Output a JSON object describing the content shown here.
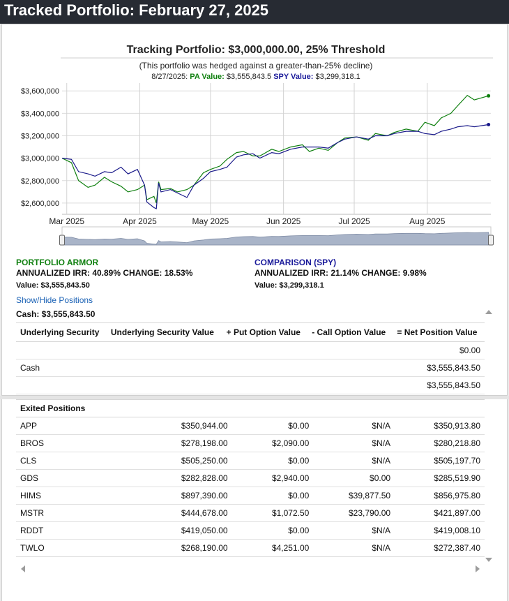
{
  "page_title": "Tracked Portfolio: February 27, 2025",
  "chart": {
    "title": "Tracking Portfolio: $3,000,000.00, 25% Threshold",
    "subtitle": "(This portfolio was hedged against a greater-than-25% decline)",
    "hover_date": "8/27/2025:",
    "hover_pa_label": "PA Value:",
    "hover_pa_value": "$3,555,843.5",
    "hover_spy_label": "SPY Value:",
    "hover_spy_value": "$3,299,318.1",
    "pa_color": "#108010",
    "spy_color": "#1a1a8a"
  },
  "chart_data": {
    "type": "line",
    "title": "Tracking Portfolio: $3,000,000.00, 25% Threshold",
    "xlabel": "",
    "ylabel": "",
    "x_ticks": [
      "Mar 2025",
      "Apr 2025",
      "May 2025",
      "Jun 2025",
      "Jul 2025",
      "Aug 2025"
    ],
    "y_ticks": [
      "$2,600,000",
      "$2,800,000",
      "$3,000,000",
      "$3,200,000",
      "$3,400,000",
      "$3,600,000"
    ],
    "ylim": [
      2500000,
      3620000
    ],
    "grid": true,
    "series": [
      {
        "name": "PA Value",
        "x": [
          "2025-02-27",
          "2025-03-03",
          "2025-03-06",
          "2025-03-10",
          "2025-03-13",
          "2025-03-17",
          "2025-03-20",
          "2025-03-24",
          "2025-03-27",
          "2025-03-31",
          "2025-04-03",
          "2025-04-04",
          "2025-04-07",
          "2025-04-08",
          "2025-04-09",
          "2025-04-10",
          "2025-04-14",
          "2025-04-17",
          "2025-04-21",
          "2025-04-24",
          "2025-04-28",
          "2025-05-01",
          "2025-05-05",
          "2025-05-08",
          "2025-05-12",
          "2025-05-15",
          "2025-05-19",
          "2025-05-22",
          "2025-05-27",
          "2025-05-30",
          "2025-06-04",
          "2025-06-09",
          "2025-06-12",
          "2025-06-16",
          "2025-06-20",
          "2025-06-24",
          "2025-06-27",
          "2025-07-02",
          "2025-07-07",
          "2025-07-10",
          "2025-07-15",
          "2025-07-18",
          "2025-07-23",
          "2025-07-28",
          "2025-07-31",
          "2025-08-04",
          "2025-08-07",
          "2025-08-11",
          "2025-08-14",
          "2025-08-18",
          "2025-08-21",
          "2025-08-27"
        ],
        "values": [
          3000000,
          2960000,
          2800000,
          2740000,
          2760000,
          2830000,
          2790000,
          2750000,
          2700000,
          2720000,
          2760000,
          2630000,
          2660000,
          2600000,
          2790000,
          2720000,
          2730000,
          2700000,
          2720000,
          2760000,
          2870000,
          2900000,
          2930000,
          2990000,
          3050000,
          3060000,
          3020000,
          3020000,
          3080000,
          3060000,
          3100000,
          3120000,
          3060000,
          3090000,
          3070000,
          3140000,
          3180000,
          3190000,
          3160000,
          3220000,
          3200000,
          3230000,
          3260000,
          3240000,
          3320000,
          3290000,
          3360000,
          3400000,
          3470000,
          3560000,
          3520000,
          3555843
        ]
      },
      {
        "name": "SPY Value",
        "x": [
          "2025-02-27",
          "2025-03-03",
          "2025-03-06",
          "2025-03-10",
          "2025-03-13",
          "2025-03-17",
          "2025-03-20",
          "2025-03-24",
          "2025-03-27",
          "2025-03-31",
          "2025-04-03",
          "2025-04-04",
          "2025-04-07",
          "2025-04-08",
          "2025-04-09",
          "2025-04-10",
          "2025-04-14",
          "2025-04-17",
          "2025-04-21",
          "2025-04-24",
          "2025-04-28",
          "2025-05-01",
          "2025-05-05",
          "2025-05-08",
          "2025-05-12",
          "2025-05-15",
          "2025-05-19",
          "2025-05-22",
          "2025-05-27",
          "2025-05-30",
          "2025-06-04",
          "2025-06-09",
          "2025-06-12",
          "2025-06-16",
          "2025-06-20",
          "2025-06-24",
          "2025-06-27",
          "2025-07-02",
          "2025-07-07",
          "2025-07-10",
          "2025-07-15",
          "2025-07-18",
          "2025-07-23",
          "2025-07-28",
          "2025-07-31",
          "2025-08-04",
          "2025-08-07",
          "2025-08-11",
          "2025-08-14",
          "2025-08-18",
          "2025-08-21",
          "2025-08-27"
        ],
        "values": [
          3000000,
          2990000,
          2880000,
          2860000,
          2840000,
          2880000,
          2870000,
          2920000,
          2860000,
          2900000,
          2760000,
          2610000,
          2560000,
          2550000,
          2780000,
          2700000,
          2720000,
          2690000,
          2650000,
          2760000,
          2820000,
          2880000,
          2900000,
          2920000,
          3010000,
          3030000,
          3040000,
          3000000,
          3050000,
          3040000,
          3080000,
          3100000,
          3100000,
          3100000,
          3090000,
          3140000,
          3170000,
          3190000,
          3170000,
          3200000,
          3200000,
          3220000,
          3240000,
          3240000,
          3220000,
          3210000,
          3240000,
          3260000,
          3280000,
          3290000,
          3280000,
          3299318
        ]
      }
    ]
  },
  "portfolio_armor": {
    "label": "PORTFOLIO ARMOR",
    "irr_line": "ANNUALIZED IRR: 40.89% CHANGE: 18.53%",
    "value_line": "Value: $3,555,843.50"
  },
  "comparison": {
    "label": "COMPARISON (SPY)",
    "irr_line": "ANNUALIZED IRR: 21.14% CHANGE: 9.98%",
    "value_line": "Value: $3,299,318.1"
  },
  "show_hide_link": "Show/Hide Positions",
  "cash_line": "Cash: $3,555,843.50",
  "positions_table": {
    "headers": [
      "Underlying Security",
      "Underlying Security Value",
      "+ Put Option Value",
      "- Call Option Value",
      "= Net Position Value"
    ],
    "rows": [
      [
        "",
        "",
        "",
        "",
        "$0.00"
      ],
      [
        "Cash",
        "",
        "",
        "",
        "$3,555,843.50"
      ],
      [
        "",
        "",
        "",
        "",
        "$3,555,843.50"
      ]
    ]
  },
  "exited_table": {
    "header": "Exited Positions",
    "rows": [
      [
        "APP",
        "$350,944.00",
        "$0.00",
        "$N/A",
        "$350,913.80"
      ],
      [
        "BROS",
        "$278,198.00",
        "$2,090.00",
        "$N/A",
        "$280,218.80"
      ],
      [
        "CLS",
        "$505,250.00",
        "$0.00",
        "$N/A",
        "$505,197.70"
      ],
      [
        "GDS",
        "$282,828.00",
        "$2,940.00",
        "$0.00",
        "$285,519.90"
      ],
      [
        "HIMS",
        "$897,390.00",
        "$0.00",
        "$39,877.50",
        "$856,975.80"
      ],
      [
        "MSTR",
        "$444,678.00",
        "$1,072.50",
        "$23,790.00",
        "$421,897.00"
      ],
      [
        "RDDT",
        "$419,050.00",
        "$0.00",
        "$N/A",
        "$419,008.10"
      ],
      [
        "TWLO",
        "$268,190.00",
        "$4,251.00",
        "$N/A",
        "$272,387.40"
      ]
    ]
  }
}
